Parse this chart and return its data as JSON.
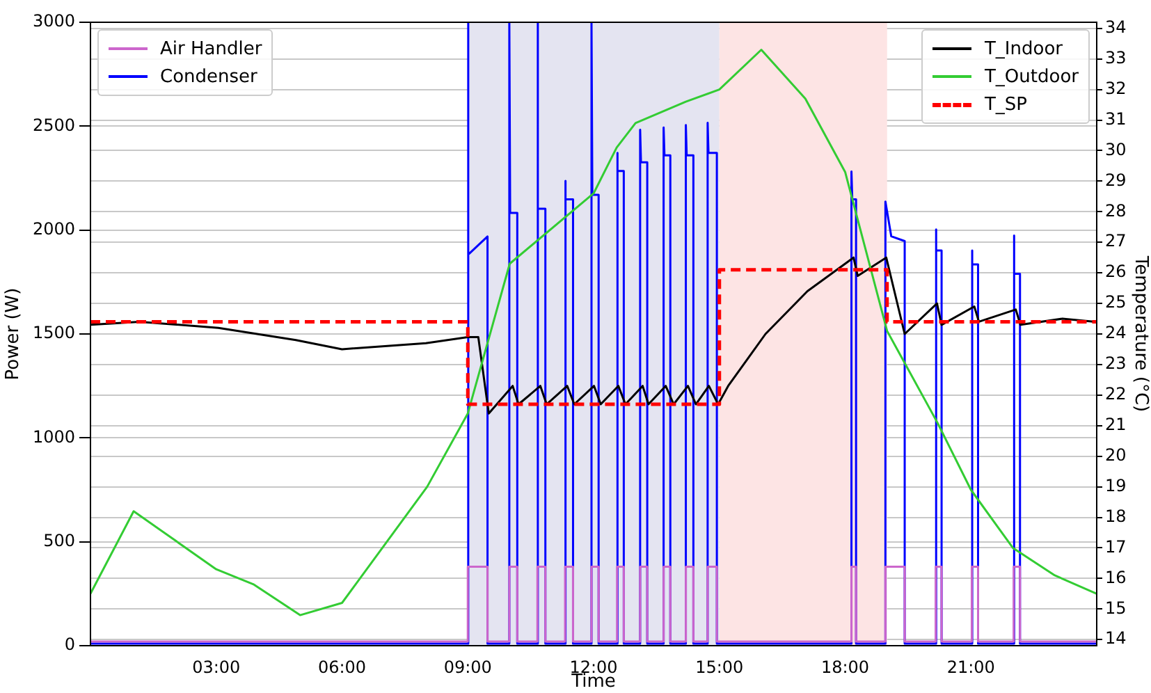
{
  "chart_data": {
    "type": "line",
    "xlabel": "Time",
    "ylabel": "Power (W)",
    "y2label": "Temperature (°C)",
    "xlim": [
      0,
      24
    ],
    "xticks": [
      {
        "value": 3,
        "label": "03:00"
      },
      {
        "value": 6,
        "label": "06:00"
      },
      {
        "value": 9,
        "label": "09:00"
      },
      {
        "value": 12,
        "label": "12:00"
      },
      {
        "value": 15,
        "label": "15:00"
      },
      {
        "value": 18,
        "label": "18:00"
      },
      {
        "value": 21,
        "label": "21:00"
      }
    ],
    "ylim": [
      0,
      3000
    ],
    "yticks": [
      0,
      500,
      1000,
      1500,
      2000,
      2500,
      3000
    ],
    "y2lim": [
      13.8,
      34.2
    ],
    "y2ticks": [
      14,
      15,
      16,
      17,
      18,
      19,
      20,
      21,
      22,
      23,
      24,
      25,
      26,
      27,
      28,
      29,
      30,
      31,
      32,
      33,
      34
    ],
    "grid": "y",
    "legend": "top",
    "bands": [
      {
        "axis": "x",
        "from": 9,
        "to": 15,
        "color": "#e4e4f1"
      },
      {
        "axis": "x",
        "from": 15,
        "to": 19,
        "color": "#fde4e4"
      }
    ],
    "series": [
      {
        "name": "Air Handler",
        "type": "line",
        "color": "#cc66cc",
        "x": [
          0,
          9,
          9,
          9.47,
          9.47,
          9.99,
          9.99,
          10.18,
          10.18,
          10.66,
          10.66,
          10.85,
          10.85,
          11.32,
          11.32,
          11.51,
          11.51,
          11.95,
          11.95,
          12.12,
          12.12,
          12.56,
          12.56,
          12.72,
          12.72,
          13.11,
          13.11,
          13.28,
          13.28,
          13.67,
          13.67,
          13.83,
          13.83,
          14.2,
          14.2,
          14.38,
          14.38,
          14.72,
          14.72,
          14.94,
          14.94,
          18.15,
          18.15,
          18.26,
          18.26,
          18.96,
          18.96,
          19.42,
          19.42,
          20.16,
          20.16,
          20.3,
          20.3,
          21.02,
          21.02,
          21.17,
          21.17,
          22.02,
          22.02,
          22.17,
          22.17,
          24
        ],
        "values": [
          20,
          20,
          380,
          380,
          20,
          20,
          380,
          380,
          20,
          20,
          380,
          380,
          20,
          20,
          380,
          380,
          20,
          20,
          380,
          380,
          20,
          20,
          380,
          380,
          20,
          20,
          380,
          380,
          20,
          20,
          380,
          380,
          20,
          20,
          380,
          380,
          20,
          20,
          380,
          380,
          20,
          20,
          380,
          380,
          20,
          20,
          380,
          380,
          20,
          20,
          380,
          380,
          20,
          20,
          380,
          380,
          20,
          20,
          380,
          380,
          20,
          20
        ]
      },
      {
        "name": "Condenser",
        "type": "line",
        "color": "#0000ff",
        "x": [
          0,
          9,
          9,
          9.02,
          9.47,
          9.47,
          9.99,
          9.99,
          10.01,
          10.18,
          10.18,
          10.66,
          10.66,
          10.68,
          10.85,
          10.85,
          11.32,
          11.32,
          11.34,
          11.51,
          11.51,
          11.95,
          11.95,
          11.97,
          12.12,
          12.12,
          12.56,
          12.56,
          12.58,
          12.72,
          12.72,
          13.11,
          13.11,
          13.13,
          13.28,
          13.28,
          13.67,
          13.67,
          13.69,
          13.83,
          13.83,
          14.2,
          14.2,
          14.22,
          14.38,
          14.38,
          14.72,
          14.72,
          14.74,
          14.94,
          14.94,
          18.15,
          18.15,
          18.17,
          18.26,
          18.26,
          18.96,
          18.96,
          19.1,
          19.42,
          19.42,
          20.16,
          20.16,
          20.18,
          20.3,
          20.3,
          21.02,
          21.02,
          21.04,
          21.17,
          21.17,
          22.02,
          22.02,
          22.04,
          22.17,
          22.17,
          24
        ],
        "values": [
          10,
          10,
          3000,
          1882,
          1969,
          10,
          10,
          3000,
          2083,
          2083,
          10,
          10,
          3000,
          2103,
          2103,
          10,
          10,
          2237,
          2148,
          2148,
          10,
          10,
          3000,
          2170,
          2170,
          10,
          10,
          2371,
          2284,
          2284,
          10,
          10,
          2483,
          2326,
          2326,
          10,
          10,
          2494,
          2360,
          2360,
          10,
          10,
          2505,
          2360,
          2360,
          10,
          10,
          2516,
          2371,
          2371,
          10,
          10,
          2282,
          2148,
          2148,
          10,
          10,
          2137,
          1970,
          1947,
          10,
          10,
          2003,
          1902,
          1902,
          10,
          10,
          1902,
          1835,
          1835,
          10,
          10,
          1974,
          1790,
          1790,
          10,
          10
        ]
      },
      {
        "name": "T_Indoor",
        "type": "line",
        "axis": "y2",
        "color": "#000000",
        "x": [
          0,
          1.17,
          3.05,
          4.9,
          6,
          8,
          9,
          9.25,
          9.5,
          10.07,
          10.21,
          10.73,
          10.88,
          11.37,
          11.54,
          12.01,
          12.17,
          12.59,
          12.76,
          13.17,
          13.31,
          13.72,
          13.91,
          14.25,
          14.44,
          14.75,
          14.97,
          15.21,
          16.1,
          17.1,
          18.2,
          18.3,
          18.98,
          19.42,
          20.19,
          20.3,
          21.08,
          21.19,
          22.07,
          22.18,
          23.18,
          23.96
        ],
        "values": [
          24.3,
          24.4,
          24.2,
          23.8,
          23.5,
          23.7,
          23.9,
          23.9,
          21.4,
          22.3,
          21.7,
          22.3,
          21.7,
          22.3,
          21.7,
          22.3,
          21.7,
          22.3,
          21.7,
          22.3,
          21.7,
          22.3,
          21.7,
          22.3,
          21.7,
          22.3,
          21.7,
          22.3,
          24.0,
          25.4,
          26.5,
          25.9,
          26.5,
          24.0,
          25.0,
          24.3,
          24.9,
          24.4,
          24.8,
          24.3,
          24.5,
          24.4
        ]
      },
      {
        "name": "T_Outdoor",
        "type": "line",
        "axis": "y2",
        "color": "#33cc33",
        "x": [
          0,
          1.03,
          3,
          3.9,
          5,
          6,
          8.03,
          9,
          10,
          12,
          12.55,
          13,
          14.2,
          15,
          16,
          17.05,
          18,
          19,
          20.2,
          21,
          22,
          23,
          24
        ],
        "values": [
          15.5,
          18.2,
          16.3,
          15.8,
          14.8,
          15.2,
          19.0,
          21.4,
          26.3,
          28.6,
          30.1,
          30.9,
          31.6,
          32.0,
          33.3,
          31.7,
          29.3,
          24.1,
          21.1,
          18.9,
          17.0,
          16.1,
          15.5
        ]
      },
      {
        "name": "T_SP",
        "type": "step",
        "axis": "y2",
        "color": "#ff0000",
        "line_style": "dashed",
        "x": [
          0,
          9,
          15,
          19,
          24
        ],
        "values": [
          24.4,
          21.7,
          26.1,
          24.4,
          24.4
        ]
      }
    ]
  }
}
